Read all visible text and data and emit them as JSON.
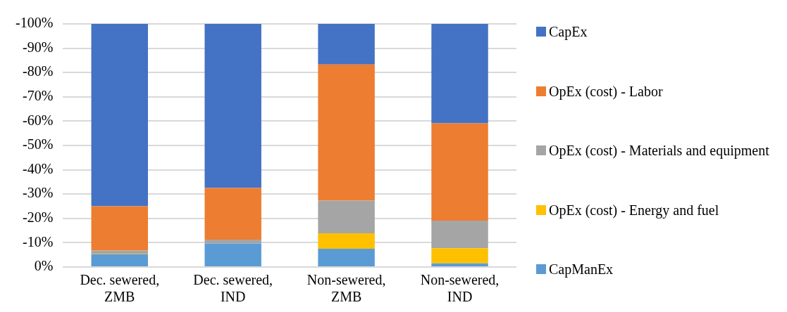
{
  "chart_data": {
    "type": "bar",
    "stacked": true,
    "categories": [
      "Dec. sewered, ZMB",
      "Dec. sewered, IND",
      "Non-sewered, ZMB",
      "Non-sewered, IND"
    ],
    "series": [
      {
        "name": "CapManEx",
        "color": "#5b9bd5",
        "values": [
          -5.3,
          -9.6,
          -7.5,
          -1.5
        ]
      },
      {
        "name": "OpEx (cost) - Energy and fuel",
        "color": "#ffc000",
        "values": [
          -0.2,
          0,
          -6.4,
          -6.2
        ]
      },
      {
        "name": "OpEx (cost) - Materials and equipment",
        "color": "#a5a5a5",
        "values": [
          -1.3,
          -1.7,
          -13.4,
          -11.4
        ]
      },
      {
        "name": "OpEx (cost) - Labor",
        "color": "#ed7d31",
        "values": [
          -18.2,
          -21.2,
          -56,
          -40
        ]
      },
      {
        "name": "CapEx",
        "color": "#4472c4",
        "values": [
          -75,
          -67.5,
          -16.7,
          -40.9
        ]
      }
    ],
    "ylim": [
      0,
      -100
    ],
    "yticks": [
      {
        "value": 0,
        "label": "0%"
      },
      {
        "value": -10,
        "label": "-10%"
      },
      {
        "value": -20,
        "label": "-20%"
      },
      {
        "value": -30,
        "label": "-30%"
      },
      {
        "value": -40,
        "label": "-40%"
      },
      {
        "value": -50,
        "label": "-50%"
      },
      {
        "value": -60,
        "label": "-60%"
      },
      {
        "value": -70,
        "label": "-70%"
      },
      {
        "value": -80,
        "label": "-80%"
      },
      {
        "value": -90,
        "label": "-90%"
      },
      {
        "value": -100,
        "label": "-100%"
      }
    ],
    "grid": "y",
    "legend": "right"
  }
}
